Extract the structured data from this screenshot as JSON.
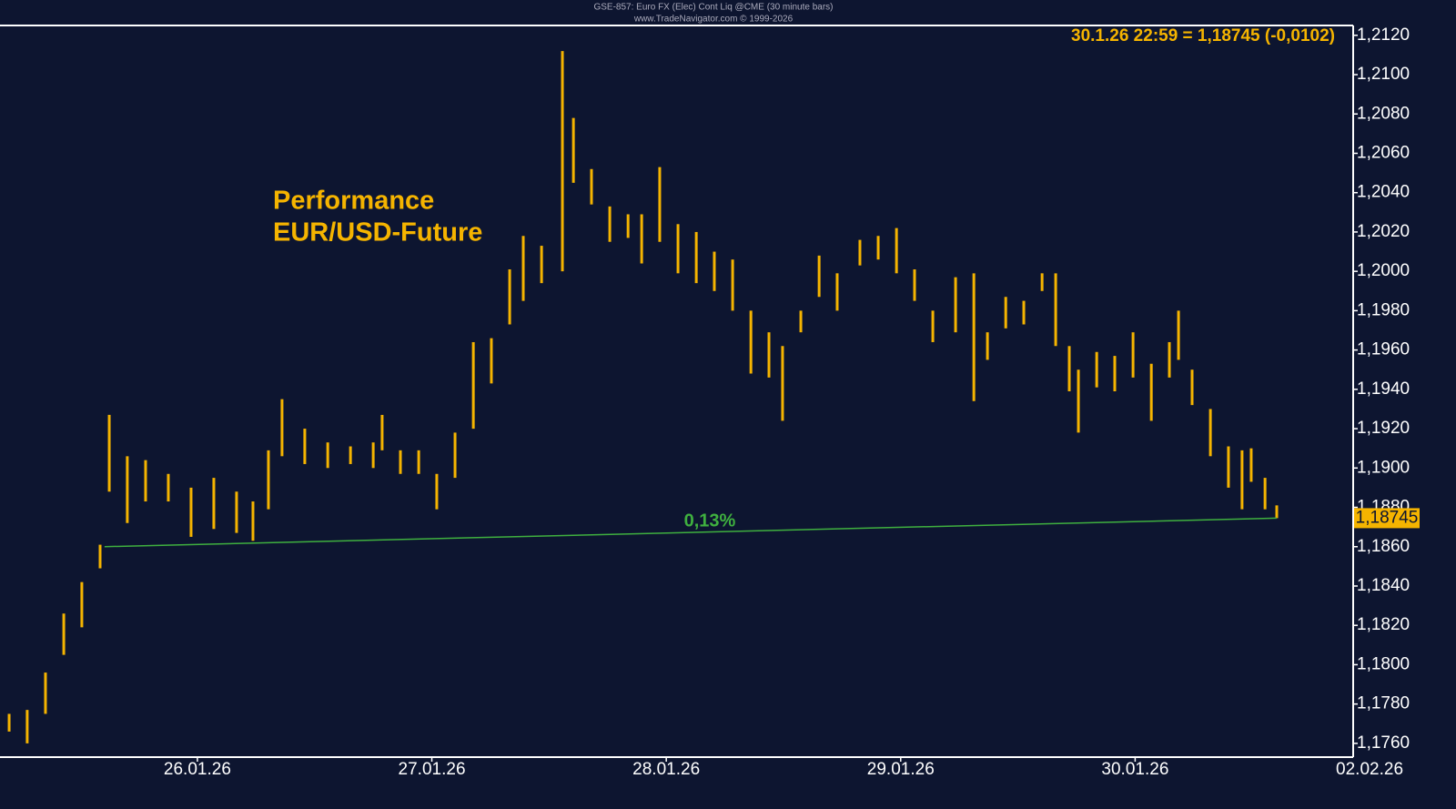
{
  "chart_data": {
    "type": "ohlc",
    "header": [
      "GSE-857: Euro FX (Elec) Cont Liq @CME (30 minute bars)",
      "www.TradeNavigator.com © 1999-2026"
    ],
    "title": [
      "Performance",
      "EUR/USD-Future"
    ],
    "price_info": "30.1.26 22:59 = 1,18745 (-0,0102)",
    "color": "#f5b400",
    "x": [
      25.197,
      25.274,
      25.352,
      25.43,
      25.507,
      25.585,
      25.624,
      25.701,
      25.779,
      25.876,
      25.973,
      26.07,
      26.167,
      26.237,
      26.303,
      26.361,
      26.458,
      26.556,
      26.653,
      26.75,
      26.788,
      26.866,
      26.944,
      27.021,
      27.099,
      27.177,
      27.254,
      27.332,
      27.39,
      27.468,
      27.557,
      27.604,
      27.681,
      27.759,
      27.837,
      27.895,
      27.972,
      28.05,
      28.128,
      28.205,
      28.283,
      28.361,
      28.438,
      28.496,
      28.574,
      28.652,
      28.729,
      28.826,
      28.904,
      28.982,
      29.059,
      29.137,
      29.234,
      29.312,
      29.37,
      29.448,
      29.525,
      29.603,
      29.661,
      29.719,
      29.758,
      29.836,
      29.913,
      29.991,
      30.069,
      30.146,
      30.185,
      30.243,
      30.321,
      30.398,
      30.456,
      30.495,
      30.554,
      30.604
    ],
    "high": [
      1.1775,
      1.1777,
      1.1796,
      1.1826,
      1.1842,
      1.1861,
      1.1927,
      1.1906,
      1.1904,
      1.1897,
      1.189,
      1.1895,
      1.1888,
      1.1883,
      1.1909,
      1.1935,
      1.192,
      1.1913,
      1.1911,
      1.1913,
      1.1927,
      1.1909,
      1.1909,
      1.1897,
      1.1918,
      1.1964,
      1.1966,
      1.2001,
      1.2018,
      1.2013,
      1.2112,
      1.2078,
      1.2052,
      1.2033,
      1.2029,
      1.2029,
      1.2053,
      1.2024,
      1.202,
      1.201,
      1.2006,
      1.198,
      1.1969,
      1.1962,
      1.198,
      1.2008,
      1.1999,
      1.2016,
      1.2018,
      1.2022,
      1.2001,
      1.198,
      1.1997,
      1.1999,
      1.1969,
      1.1987,
      1.1985,
      1.1999,
      1.1999,
      1.1962,
      1.195,
      1.1959,
      1.1957,
      1.1969,
      1.1953,
      1.1964,
      1.198,
      1.195,
      1.193,
      1.1911,
      1.1909,
      1.191,
      1.1895,
      1.1881
    ],
    "low": [
      1.1766,
      1.176,
      1.1775,
      1.1805,
      1.1819,
      1.1849,
      1.1888,
      1.1872,
      1.1883,
      1.1883,
      1.1865,
      1.1869,
      1.1867,
      1.1863,
      1.1879,
      1.1906,
      1.1902,
      1.19,
      1.1902,
      1.19,
      1.1909,
      1.1897,
      1.1897,
      1.1879,
      1.1895,
      1.192,
      1.1943,
      1.1973,
      1.1985,
      1.1994,
      1.2,
      1.2045,
      1.2034,
      1.2015,
      1.2017,
      1.2004,
      1.2015,
      1.1999,
      1.1994,
      1.199,
      1.198,
      1.1948,
      1.1946,
      1.1924,
      1.1969,
      1.1987,
      1.198,
      1.2003,
      1.2006,
      1.1999,
      1.1985,
      1.1964,
      1.1969,
      1.1934,
      1.1955,
      1.1971,
      1.1973,
      1.199,
      1.1962,
      1.1939,
      1.1918,
      1.1941,
      1.1939,
      1.1946,
      1.1924,
      1.1946,
      1.1955,
      1.1932,
      1.1906,
      1.189,
      1.1879,
      1.1893,
      1.1879,
      1.18745
    ],
    "reference_line": {
      "x": [
        25.604,
        30.604
      ],
      "y": [
        1.186,
        1.18745
      ],
      "color": "#3fb03f",
      "label": "0,13%"
    },
    "last_price": {
      "value": 1.18745,
      "label": "1,18745"
    },
    "xlim": [
      25.158,
      30.93
    ],
    "xticks": [
      {
        "value": 26,
        "label": "26.01.26"
      },
      {
        "value": 27,
        "label": "27.01.26"
      },
      {
        "value": 28,
        "label": "28.01.26"
      },
      {
        "value": 29,
        "label": "29.01.26"
      },
      {
        "value": 30,
        "label": "30.01.26"
      },
      {
        "value": 31,
        "label": "02.02.26"
      }
    ],
    "ylim": [
      1.1753,
      1.2125
    ],
    "yticks": [
      {
        "value": 1.176,
        "label": "1,1760"
      },
      {
        "value": 1.178,
        "label": "1,1780"
      },
      {
        "value": 1.18,
        "label": "1,1800"
      },
      {
        "value": 1.182,
        "label": "1,1820"
      },
      {
        "value": 1.184,
        "label": "1,1840"
      },
      {
        "value": 1.186,
        "label": "1,1860"
      },
      {
        "value": 1.188,
        "label": "1,1880"
      },
      {
        "value": 1.19,
        "label": "1,1900"
      },
      {
        "value": 1.192,
        "label": "1,1920"
      },
      {
        "value": 1.194,
        "label": "1,1940"
      },
      {
        "value": 1.196,
        "label": "1,1960"
      },
      {
        "value": 1.198,
        "label": "1,1980"
      },
      {
        "value": 1.2,
        "label": "1,2000"
      },
      {
        "value": 1.202,
        "label": "1,2020"
      },
      {
        "value": 1.204,
        "label": "1,2040"
      },
      {
        "value": 1.206,
        "label": "1,2060"
      },
      {
        "value": 1.208,
        "label": "1,2080"
      },
      {
        "value": 1.21,
        "label": "1,2100"
      },
      {
        "value": 1.212,
        "label": "1,2120"
      }
    ]
  }
}
